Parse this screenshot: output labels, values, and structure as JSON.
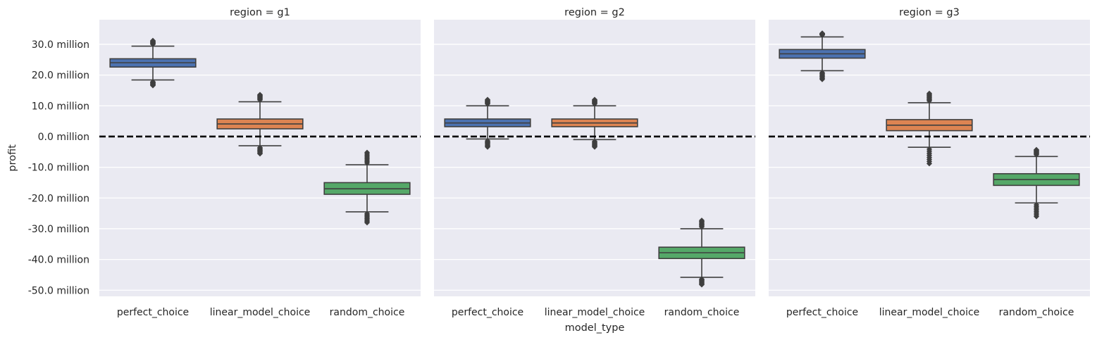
{
  "chart_data": {
    "type": "box",
    "xlabel": "model_type",
    "ylabel": "profit",
    "ylim": [
      -52,
      38
    ],
    "yticks": [
      30,
      20,
      10,
      0,
      -10,
      -20,
      -30,
      -40,
      -50
    ],
    "ytick_labels": [
      "30.0 million",
      "20.0 million",
      "10.0 million",
      "0.0 million",
      "-10.0 million",
      "-20.0 million",
      "-30.0 million",
      "-40.0 million",
      "-50.0 million"
    ],
    "y_unit": "million",
    "reference_line": {
      "y": 0,
      "style": "dashed",
      "color": "#000000"
    },
    "categories": [
      "perfect_choice",
      "linear_model_choice",
      "random_choice"
    ],
    "category_colors": [
      "#4c72b0",
      "#dd8452",
      "#55a868"
    ],
    "background_color": "#eaeaf2",
    "grid": true,
    "panels": [
      {
        "title": "region = g1",
        "boxes": [
          {
            "category": "perfect_choice",
            "q1": 22.6,
            "median": 24.0,
            "q3": 25.3,
            "whisker_low": 18.4,
            "whisker_high": 29.4,
            "outlier_low": 16.6,
            "outlier_high": 31.2
          },
          {
            "category": "linear_model_choice",
            "q1": 2.5,
            "median": 4.1,
            "q3": 5.7,
            "whisker_low": -3.0,
            "whisker_high": 11.3,
            "outlier_low": -5.6,
            "outlier_high": 13.6
          },
          {
            "category": "random_choice",
            "q1": -18.8,
            "median": -17.0,
            "q3": -15.0,
            "whisker_low": -24.5,
            "whisker_high": -9.2,
            "outlier_low": -28.0,
            "outlier_high": -5.2
          }
        ]
      },
      {
        "title": "region = g2",
        "boxes": [
          {
            "category": "perfect_choice",
            "q1": 3.2,
            "median": 4.4,
            "q3": 5.7,
            "whisker_low": -0.8,
            "whisker_high": 10.0,
            "outlier_low": -3.4,
            "outlier_high": 12.0
          },
          {
            "category": "linear_model_choice",
            "q1": 3.2,
            "median": 4.4,
            "q3": 5.7,
            "whisker_low": -1.0,
            "whisker_high": 10.0,
            "outlier_low": -3.4,
            "outlier_high": 12.0
          },
          {
            "category": "random_choice",
            "q1": -39.7,
            "median": -37.8,
            "q3": -36.0,
            "whisker_low": -45.8,
            "whisker_high": -30.0,
            "outlier_low": -48.2,
            "outlier_high": -27.3
          }
        ]
      },
      {
        "title": "region = g3",
        "boxes": [
          {
            "category": "perfect_choice",
            "q1": 25.5,
            "median": 26.9,
            "q3": 28.3,
            "whisker_low": 21.4,
            "whisker_high": 32.4,
            "outlier_low": 18.6,
            "outlier_high": 33.6
          },
          {
            "category": "linear_model_choice",
            "q1": 1.9,
            "median": 3.7,
            "q3": 5.5,
            "whisker_low": -3.5,
            "whisker_high": 11.0,
            "outlier_low": -8.8,
            "outlier_high": 14.0
          },
          {
            "category": "random_choice",
            "q1": -15.9,
            "median": -14.0,
            "q3": -12.1,
            "whisker_low": -21.6,
            "whisker_high": -6.5,
            "outlier_low": -26.0,
            "outlier_high": -4.3
          }
        ]
      }
    ]
  }
}
